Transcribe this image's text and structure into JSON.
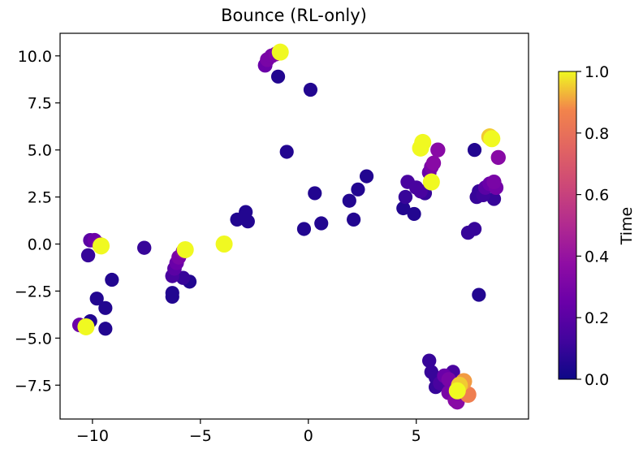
{
  "chart_data": {
    "type": "scatter",
    "title": "Bounce (RL-only)",
    "xlabel": "",
    "ylabel": "",
    "xlim": [
      -11.5,
      10.2
    ],
    "ylim": [
      -9.3,
      11.2
    ],
    "xticks": [
      -10,
      -5,
      0,
      5
    ],
    "yticks": [
      -7.5,
      -5.0,
      -2.5,
      0.0,
      2.5,
      5.0,
      7.5,
      10.0
    ],
    "xtick_labels": [
      "−10",
      "−5",
      "0",
      "5"
    ],
    "ytick_labels": [
      "−7.5",
      "−5.0",
      "−2.5",
      "0.0",
      "2.5",
      "5.0",
      "7.5",
      "10.0"
    ],
    "grid": false,
    "colorbar": {
      "label": "Time",
      "colormap": "plasma",
      "range": [
        0.0,
        1.0
      ],
      "ticks": [
        0.0,
        0.2,
        0.4,
        0.6,
        0.8,
        1.0
      ],
      "tick_labels": [
        "0.0",
        "0.2",
        "0.4",
        "0.6",
        "0.8",
        "1.0"
      ]
    },
    "points": [
      {
        "x": -1.4,
        "y": 8.9,
        "t": 0.05
      },
      {
        "x": 0.1,
        "y": 8.2,
        "t": 0.05
      },
      {
        "x": -2.0,
        "y": 9.5,
        "t": 0.25
      },
      {
        "x": -1.9,
        "y": 9.8,
        "t": 0.3
      },
      {
        "x": -1.7,
        "y": 10.0,
        "t": 0.3
      },
      {
        "x": -1.5,
        "y": 10.1,
        "t": 0.32
      },
      {
        "x": -1.3,
        "y": 10.2,
        "t": 1.0
      },
      {
        "x": -1.0,
        "y": 4.9,
        "t": 0.05
      },
      {
        "x": -3.3,
        "y": 1.3,
        "t": 0.05
      },
      {
        "x": -2.9,
        "y": 1.7,
        "t": 0.05
      },
      {
        "x": -2.8,
        "y": 1.2,
        "t": 0.05
      },
      {
        "x": -3.9,
        "y": 0.0,
        "t": 1.0
      },
      {
        "x": 0.3,
        "y": 2.7,
        "t": 0.05
      },
      {
        "x": -0.2,
        "y": 0.8,
        "t": 0.05
      },
      {
        "x": 0.6,
        "y": 1.1,
        "t": 0.05
      },
      {
        "x": 1.9,
        "y": 2.3,
        "t": 0.05
      },
      {
        "x": 2.3,
        "y": 2.9,
        "t": 0.05
      },
      {
        "x": 2.7,
        "y": 3.6,
        "t": 0.05
      },
      {
        "x": 2.1,
        "y": 1.3,
        "t": 0.05
      },
      {
        "x": 4.5,
        "y": 2.5,
        "t": 0.1
      },
      {
        "x": 4.4,
        "y": 1.9,
        "t": 0.05
      },
      {
        "x": 4.6,
        "y": 3.3,
        "t": 0.15
      },
      {
        "x": 4.9,
        "y": 1.6,
        "t": 0.05
      },
      {
        "x": 5.0,
        "y": 3.0,
        "t": 0.15
      },
      {
        "x": 5.2,
        "y": 2.8,
        "t": 0.15
      },
      {
        "x": 5.4,
        "y": 2.7,
        "t": 0.1
      },
      {
        "x": 5.6,
        "y": 3.8,
        "t": 0.25
      },
      {
        "x": 5.7,
        "y": 4.1,
        "t": 0.3
      },
      {
        "x": 5.8,
        "y": 4.3,
        "t": 0.35
      },
      {
        "x": 6.0,
        "y": 5.0,
        "t": 0.35
      },
      {
        "x": 5.2,
        "y": 5.1,
        "t": 1.0
      },
      {
        "x": 5.3,
        "y": 5.4,
        "t": 1.0
      },
      {
        "x": 5.7,
        "y": 3.3,
        "t": 1.0
      },
      {
        "x": 7.7,
        "y": 5.0,
        "t": 0.05
      },
      {
        "x": 7.9,
        "y": 2.8,
        "t": 0.1
      },
      {
        "x": 7.8,
        "y": 2.5,
        "t": 0.1
      },
      {
        "x": 8.1,
        "y": 2.6,
        "t": 0.12
      },
      {
        "x": 8.2,
        "y": 3.0,
        "t": 0.2
      },
      {
        "x": 8.4,
        "y": 3.2,
        "t": 0.25
      },
      {
        "x": 8.6,
        "y": 3.3,
        "t": 0.3
      },
      {
        "x": 8.7,
        "y": 3.0,
        "t": 0.28
      },
      {
        "x": 8.6,
        "y": 2.4,
        "t": 0.1
      },
      {
        "x": 8.8,
        "y": 4.6,
        "t": 0.35
      },
      {
        "x": 8.5,
        "y": 5.6,
        "t": 1.0
      },
      {
        "x": 8.4,
        "y": 5.7,
        "t": 0.95
      },
      {
        "x": 7.7,
        "y": 0.8,
        "t": 0.1
      },
      {
        "x": 7.4,
        "y": 0.6,
        "t": 0.1
      },
      {
        "x": 7.9,
        "y": -2.7,
        "t": 0.05
      },
      {
        "x": -10.1,
        "y": 0.2,
        "t": 0.2
      },
      {
        "x": -9.9,
        "y": 0.2,
        "t": 0.25
      },
      {
        "x": -9.7,
        "y": 0.0,
        "t": 0.3
      },
      {
        "x": -9.6,
        "y": -0.1,
        "t": 1.0
      },
      {
        "x": -10.2,
        "y": -0.6,
        "t": 0.1
      },
      {
        "x": -7.6,
        "y": -0.2,
        "t": 0.1
      },
      {
        "x": -9.1,
        "y": -1.9,
        "t": 0.05
      },
      {
        "x": -9.8,
        "y": -2.9,
        "t": 0.05
      },
      {
        "x": -9.4,
        "y": -3.4,
        "t": 0.05
      },
      {
        "x": -10.1,
        "y": -4.1,
        "t": 0.05
      },
      {
        "x": -9.4,
        "y": -4.5,
        "t": 0.05
      },
      {
        "x": -10.6,
        "y": -4.3,
        "t": 0.25
      },
      {
        "x": -10.3,
        "y": -4.4,
        "t": 1.0
      },
      {
        "x": -6.3,
        "y": -1.7,
        "t": 0.15
      },
      {
        "x": -6.2,
        "y": -1.3,
        "t": 0.2
      },
      {
        "x": -6.1,
        "y": -1.0,
        "t": 0.25
      },
      {
        "x": -6.0,
        "y": -0.7,
        "t": 0.3
      },
      {
        "x": -5.8,
        "y": -0.4,
        "t": 0.35
      },
      {
        "x": -5.7,
        "y": -0.3,
        "t": 1.0
      },
      {
        "x": -5.8,
        "y": -1.8,
        "t": 0.1
      },
      {
        "x": -5.5,
        "y": -2.0,
        "t": 0.05
      },
      {
        "x": -6.3,
        "y": -2.6,
        "t": 0.05
      },
      {
        "x": -6.3,
        "y": -2.8,
        "t": 0.05
      },
      {
        "x": 5.6,
        "y": -6.2,
        "t": 0.1
      },
      {
        "x": 5.7,
        "y": -6.8,
        "t": 0.1
      },
      {
        "x": 5.9,
        "y": -7.1,
        "t": 0.1
      },
      {
        "x": 6.1,
        "y": -7.4,
        "t": 0.15
      },
      {
        "x": 6.3,
        "y": -7.0,
        "t": 0.25
      },
      {
        "x": 6.5,
        "y": -7.2,
        "t": 0.3
      },
      {
        "x": 6.7,
        "y": -6.8,
        "t": 0.15
      },
      {
        "x": 6.6,
        "y": -7.6,
        "t": 0.2
      },
      {
        "x": 6.7,
        "y": -8.0,
        "t": 0.3
      },
      {
        "x": 6.8,
        "y": -8.3,
        "t": 0.35
      },
      {
        "x": 6.9,
        "y": -8.4,
        "t": 0.35
      },
      {
        "x": 6.9,
        "y": -7.8,
        "t": 1.0
      },
      {
        "x": 7.0,
        "y": -7.5,
        "t": 0.95
      },
      {
        "x": 7.2,
        "y": -7.3,
        "t": 0.9
      },
      {
        "x": 7.4,
        "y": -8.0,
        "t": 0.85
      },
      {
        "x": 6.5,
        "y": -7.9,
        "t": 0.3
      },
      {
        "x": 5.9,
        "y": -7.6,
        "t": 0.1
      }
    ]
  }
}
